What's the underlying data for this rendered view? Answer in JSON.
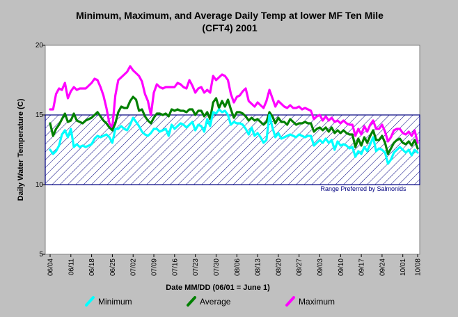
{
  "chart_data": {
    "type": "line",
    "title": [
      "Minimum, Maximum, and Average Daily Temp at lower MF Ten Mile",
      "(CFT4) 2001"
    ],
    "xlabel": "Date MM/DD (06/01 = June 1)",
    "ylabel": "Daily Water Temperature (C)",
    "ylim": [
      5,
      20
    ],
    "yticks": [
      "5",
      "10",
      "15",
      "20"
    ],
    "xticks": [
      "06/04",
      "06/11",
      "06/18",
      "06/25",
      "07/02",
      "07/09",
      "07/16",
      "07/23",
      "07/30",
      "08/06",
      "08/13",
      "08/20",
      "08/27",
      "09/03",
      "09/10",
      "09/17",
      "09/24",
      "10/01",
      "10/08"
    ],
    "x_start": "06/04",
    "x_end": "10/08",
    "grid": false,
    "legend_position": "bottom",
    "preferred_range": {
      "low": 10,
      "high": 15,
      "label": "Range Preferred by Salmonids"
    },
    "series": [
      {
        "name": "Minimum",
        "color": "#00ffff",
        "values": [
          12.5,
          12.2,
          12.4,
          12.8,
          13.6,
          13.9,
          13.4,
          14.0,
          12.7,
          12.9,
          12.7,
          12.8,
          12.7,
          12.8,
          12.9,
          13.3,
          13.5,
          13.4,
          13.5,
          13.6,
          13.4,
          13.0,
          14.0,
          14.0,
          14.2,
          14.0,
          13.9,
          14.3,
          14.8,
          14.5,
          14.2,
          13.8,
          13.6,
          13.5,
          13.7,
          14.0,
          14.0,
          13.8,
          13.9,
          14.0,
          13.5,
          14.3,
          14.0,
          14.2,
          14.4,
          14.3,
          14.1,
          14.3,
          14.5,
          13.9,
          14.3,
          14.2,
          13.8,
          14.7,
          14.2,
          15.2,
          15.1,
          15.4,
          15.2,
          15.3,
          15.0,
          14.3,
          14.5,
          14.4,
          14.4,
          14.3,
          14.0,
          13.6,
          14.1,
          13.5,
          13.7,
          13.4,
          13.0,
          13.2,
          15.0,
          14.1,
          13.4,
          13.7,
          13.3,
          13.4,
          13.5,
          13.6,
          13.5,
          13.4,
          13.6,
          13.5,
          13.4,
          13.5,
          13.5,
          12.8,
          13.0,
          13.2,
          13.0,
          13.3,
          13.0,
          13.2,
          12.5,
          13.1,
          12.8,
          12.9,
          12.8,
          12.6,
          12.7,
          12.0,
          12.4,
          12.2,
          12.7,
          12.4,
          12.9,
          13.4,
          12.4,
          12.6,
          12.5,
          12.3,
          11.5,
          11.8,
          12.3,
          12.5,
          12.7,
          12.5,
          12.3,
          12.5,
          12.1,
          12.5,
          12.3
        ]
      },
      {
        "name": "Average",
        "color": "#008000",
        "values": [
          14.4,
          13.5,
          14.0,
          14.3,
          14.7,
          15.1,
          14.5,
          14.6,
          15.1,
          14.6,
          14.5,
          14.4,
          14.6,
          14.7,
          14.8,
          15.0,
          15.2,
          14.9,
          14.6,
          14.4,
          14.1,
          13.9,
          14.4,
          15.2,
          15.6,
          15.5,
          15.5,
          16.0,
          16.3,
          16.1,
          15.3,
          15.4,
          14.9,
          14.6,
          14.4,
          14.8,
          15.1,
          15.1,
          15.0,
          15.1,
          14.9,
          15.4,
          15.3,
          15.4,
          15.3,
          15.3,
          15.2,
          15.4,
          15.4,
          15.0,
          15.3,
          15.3,
          14.9,
          15.2,
          14.7,
          15.9,
          16.2,
          15.5,
          16.0,
          15.6,
          16.1,
          15.4,
          14.8,
          15.2,
          15.2,
          15.1,
          14.9,
          14.6,
          14.8,
          14.6,
          14.7,
          14.5,
          14.3,
          14.5,
          15.2,
          14.9,
          14.4,
          14.8,
          14.5,
          14.5,
          14.3,
          14.7,
          14.5,
          14.3,
          14.4,
          14.4,
          14.5,
          14.4,
          14.4,
          13.8,
          14.0,
          14.1,
          13.9,
          14.1,
          13.8,
          14.1,
          13.7,
          13.9,
          13.7,
          13.9,
          13.7,
          13.6,
          13.6,
          12.7,
          13.3,
          12.8,
          13.4,
          13.0,
          13.5,
          13.9,
          13.2,
          13.2,
          13.5,
          13.0,
          12.2,
          12.6,
          13.0,
          13.2,
          13.3,
          13.0,
          12.9,
          13.1,
          12.8,
          13.2,
          12.6
        ]
      },
      {
        "name": "Maximum",
        "color": "#ff00ff",
        "values": [
          15.4,
          15.4,
          16.5,
          16.9,
          16.8,
          17.3,
          16.2,
          16.7,
          17.0,
          16.8,
          16.9,
          16.9,
          16.9,
          17.1,
          17.3,
          17.6,
          17.5,
          17.0,
          16.4,
          15.5,
          14.4,
          14.1,
          16.4,
          17.5,
          17.7,
          17.9,
          18.1,
          18.5,
          18.2,
          18.0,
          17.8,
          17.4,
          16.5,
          16.0,
          15.0,
          16.6,
          17.2,
          17.0,
          16.9,
          17.0,
          17.0,
          17.0,
          17.0,
          17.3,
          17.2,
          17.0,
          16.9,
          17.5,
          17.1,
          16.6,
          16.9,
          17.0,
          16.6,
          16.8,
          16.6,
          17.8,
          17.5,
          17.7,
          17.9,
          17.8,
          17.5,
          16.5,
          15.9,
          16.3,
          16.4,
          16.7,
          16.9,
          16.0,
          15.8,
          15.6,
          15.9,
          15.7,
          15.5,
          16.0,
          16.8,
          16.2,
          15.6,
          16.0,
          15.8,
          15.6,
          15.5,
          15.7,
          15.5,
          15.5,
          15.6,
          15.4,
          15.5,
          15.4,
          15.3,
          14.7,
          14.9,
          15.0,
          14.6,
          14.9,
          14.6,
          14.8,
          14.5,
          14.6,
          14.4,
          14.6,
          14.4,
          14.3,
          14.3,
          13.5,
          14.0,
          13.6,
          14.2,
          13.8,
          14.3,
          14.6,
          14.0,
          14.0,
          14.3,
          13.8,
          13.1,
          13.4,
          13.9,
          14.0,
          14.0,
          13.7,
          13.6,
          13.8,
          13.5,
          13.9,
          13.0
        ]
      }
    ]
  }
}
